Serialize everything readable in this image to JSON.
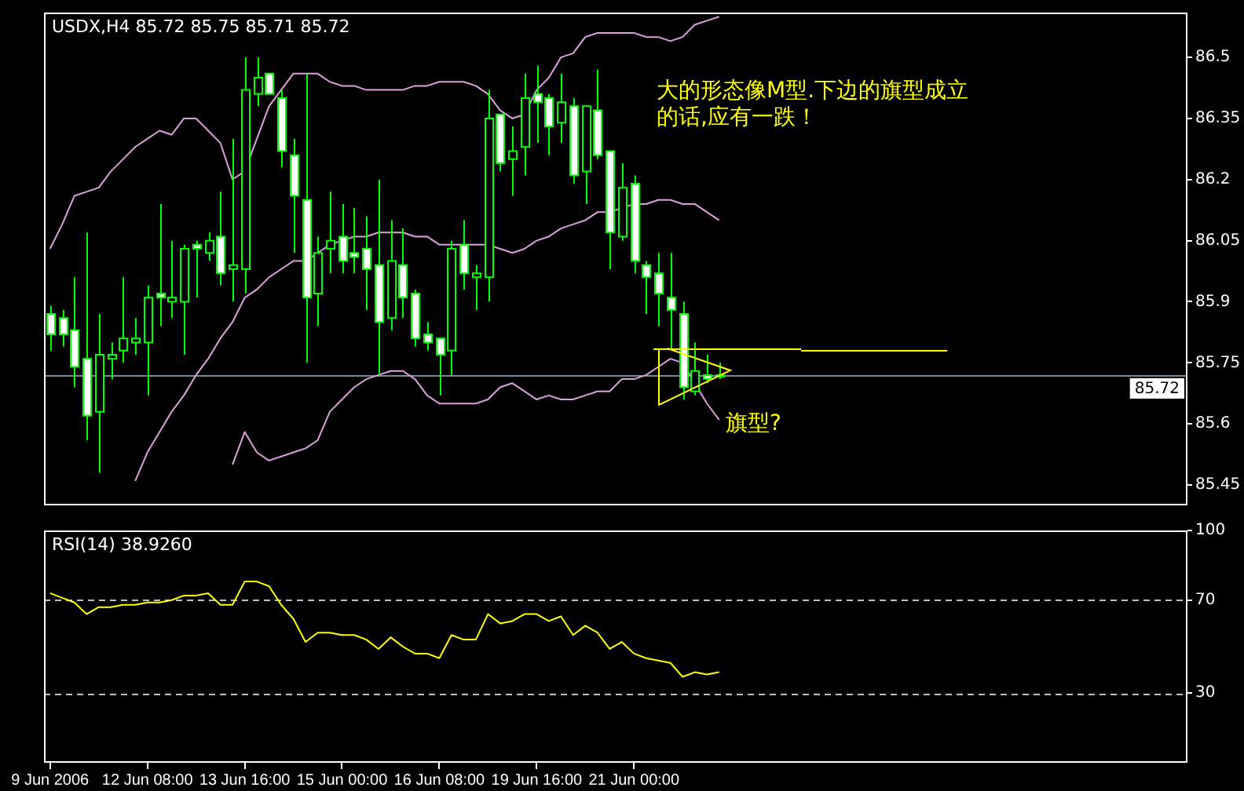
{
  "chart_data": [
    {
      "type": "candlestick",
      "title": "USDX,H4 85.72 85.75 85.71 85.72",
      "categories": [
        null,
        null,
        null,
        null,
        null,
        null,
        null,
        null,
        null,
        null,
        null,
        null,
        null,
        null,
        null,
        null,
        null,
        null,
        null,
        null,
        null,
        null,
        null,
        null,
        null,
        null,
        null,
        null,
        null,
        null,
        null,
        null,
        null,
        null,
        null,
        null,
        null,
        null,
        null,
        null,
        null,
        null,
        null,
        null,
        null,
        null,
        null,
        null,
        null,
        null,
        null,
        null,
        null,
        null,
        null,
        null,
        null,
        null,
        null,
        null,
        null,
        null,
        null,
        null,
        null,
        null,
        null,
        null,
        null,
        null,
        null,
        null,
        null,
        null,
        null,
        null,
        null,
        null,
        null,
        null,
        null,
        null,
        null,
        null,
        null,
        null,
        null,
        null,
        null,
        null,
        null,
        null,
        null,
        null
      ],
      "ohlc": [
        [
          85.87,
          85.89,
          85.78,
          85.82
        ],
        [
          85.86,
          85.88,
          85.79,
          85.82
        ],
        [
          85.83,
          85.96,
          85.69,
          85.74
        ],
        [
          85.76,
          86.07,
          85.56,
          85.62
        ],
        [
          85.63,
          85.87,
          85.48,
          85.77
        ],
        [
          85.76,
          85.8,
          85.71,
          85.77
        ],
        [
          85.78,
          85.96,
          85.75,
          85.81
        ],
        [
          85.8,
          85.86,
          85.77,
          85.81
        ],
        [
          85.8,
          85.94,
          85.67,
          85.91
        ],
        [
          85.92,
          86.14,
          85.84,
          85.91
        ],
        [
          85.9,
          86.05,
          85.86,
          85.91
        ],
        [
          85.9,
          86.04,
          85.77,
          86.03
        ],
        [
          86.04,
          86.05,
          85.91,
          86.03
        ],
        [
          86.02,
          86.07,
          86.0,
          86.05
        ],
        [
          86.06,
          86.17,
          85.94,
          85.97
        ],
        [
          85.98,
          86.3,
          85.9,
          85.99
        ],
        [
          85.98,
          86.5,
          85.92,
          86.42
        ],
        [
          86.41,
          86.5,
          86.38,
          86.45
        ],
        [
          86.46,
          86.46,
          86.41,
          86.41
        ],
        [
          86.4,
          86.42,
          86.23,
          86.27
        ],
        [
          86.26,
          86.3,
          86.02,
          86.16
        ],
        [
          86.15,
          86.46,
          85.75,
          85.91
        ],
        [
          85.92,
          86.06,
          85.84,
          86.02
        ],
        [
          86.03,
          86.17,
          85.97,
          86.05
        ],
        [
          86.06,
          86.14,
          85.97,
          86.0
        ],
        [
          86.02,
          86.13,
          85.97,
          86.01
        ],
        [
          86.03,
          86.11,
          85.88,
          85.98
        ],
        [
          85.99,
          86.2,
          85.72,
          85.85
        ],
        [
          85.86,
          86.1,
          85.83,
          86.0
        ],
        [
          85.99,
          86.08,
          85.86,
          85.91
        ],
        [
          85.92,
          85.93,
          85.79,
          85.81
        ],
        [
          85.82,
          85.85,
          85.78,
          85.8
        ],
        [
          85.81,
          85.81,
          85.67,
          85.77
        ],
        [
          85.78,
          86.05,
          85.72,
          86.03
        ],
        [
          86.04,
          86.1,
          85.93,
          85.97
        ],
        [
          85.96,
          85.99,
          85.88,
          85.97
        ],
        [
          85.96,
          86.42,
          85.9,
          86.35
        ],
        [
          86.36,
          86.36,
          86.22,
          86.24
        ],
        [
          86.25,
          86.33,
          86.16,
          86.27
        ],
        [
          86.28,
          86.46,
          86.21,
          86.4
        ],
        [
          86.41,
          86.48,
          86.29,
          86.39
        ],
        [
          86.4,
          86.41,
          86.26,
          86.33
        ],
        [
          86.34,
          86.46,
          86.29,
          86.39
        ],
        [
          86.38,
          86.4,
          86.19,
          86.21
        ],
        [
          86.22,
          86.38,
          86.14,
          86.38
        ],
        [
          86.37,
          86.47,
          86.25,
          86.26
        ],
        [
          86.27,
          86.27,
          85.98,
          86.07
        ],
        [
          86.06,
          86.24,
          86.05,
          86.18
        ],
        [
          86.19,
          86.21,
          85.97,
          86.0
        ],
        [
          85.99,
          86.0,
          85.87,
          85.96
        ],
        [
          85.97,
          86.02,
          85.84,
          85.92
        ],
        [
          85.91,
          86.02,
          85.78,
          85.88
        ],
        [
          85.87,
          85.9,
          85.66,
          85.69
        ],
        [
          85.68,
          85.8,
          85.67,
          85.73
        ],
        [
          85.72,
          85.77,
          85.7,
          85.71
        ],
        [
          85.72,
          85.75,
          85.71,
          85.72
        ],
        null,
        null,
        null,
        null,
        null,
        null,
        null,
        null,
        null,
        null,
        null,
        null,
        null,
        null,
        null,
        null,
        null,
        null,
        null,
        null,
        null,
        null,
        null,
        null,
        null,
        null,
        null,
        null,
        null,
        null,
        null,
        null,
        null,
        null,
        null,
        null,
        null,
        null
      ],
      "color": "#00ff00",
      "colors": [
        "#ffffff",
        "#ffffff",
        "#ffffff",
        "#ffffff",
        "#000000",
        "#000000",
        "#000000",
        "#000000",
        "#000000",
        "#ffffff",
        "#000000",
        "#000000",
        "#ffffff",
        "#000000",
        "#ffffff",
        "#000000",
        "#000000",
        "#000000",
        "#ffffff",
        "#ffffff",
        "#ffffff",
        "#ffffff",
        "#000000",
        "#000000",
        "#ffffff",
        "#ffffff",
        "#ffffff",
        "#ffffff",
        "#000000",
        "#ffffff",
        "#ffffff",
        "#ffffff",
        "#ffffff",
        "#000000",
        "#ffffff",
        "#000000",
        "#000000",
        "#ffffff",
        "#000000",
        "#000000",
        "#ffffff",
        "#ffffff",
        "#000000",
        "#ffffff",
        "#000000",
        "#ffffff",
        "#ffffff",
        "#000000",
        "#ffffff",
        "#ffffff",
        "#ffffff",
        "#ffffff",
        "#ffffff",
        "#000000",
        "#ffffff",
        "#000000",
        null,
        null,
        null,
        null,
        null,
        null,
        null,
        null,
        null,
        null,
        null,
        null,
        null,
        null,
        null,
        null,
        null,
        null,
        null,
        null,
        null,
        null,
        null,
        null,
        null,
        null,
        null,
        null,
        null,
        null,
        null,
        null,
        null,
        null,
        null,
        null,
        null,
        null
      ],
      "series": [
        {
          "type": "line",
          "color": "#dda0dd",
          "values": [
            86.03,
            86.09,
            86.16,
            86.17,
            86.18,
            86.22,
            86.25,
            86.28,
            86.3,
            86.32,
            86.31,
            86.35,
            86.35,
            86.32,
            86.29,
            86.2,
            86.22,
            86.3,
            86.38,
            86.42,
            86.46,
            86.46,
            86.46,
            86.44,
            86.43,
            86.43,
            86.42,
            86.42,
            86.42,
            86.42,
            86.43,
            86.43,
            86.44,
            86.44,
            86.44,
            86.43,
            86.41,
            86.37,
            86.35,
            86.36,
            86.42,
            86.45,
            86.5,
            86.51,
            86.55,
            86.56,
            86.56,
            86.56,
            86.56,
            86.55,
            86.55,
            86.54,
            86.55,
            86.58,
            86.59,
            86.6,
            null,
            null,
            null,
            null,
            null,
            null,
            null,
            null,
            null,
            null,
            null,
            null,
            null,
            null,
            null,
            null,
            null,
            null,
            null,
            null,
            null,
            null,
            null,
            null,
            null,
            null,
            null,
            null,
            null,
            null,
            null,
            null,
            null,
            null,
            null,
            null,
            null,
            null
          ]
        },
        {
          "type": "line",
          "color": "#dda0dd",
          "values": [
            null,
            null,
            null,
            null,
            null,
            null,
            null,
            85.46,
            85.53,
            85.58,
            85.63,
            85.67,
            85.72,
            85.76,
            85.81,
            85.85,
            85.91,
            85.93,
            85.96,
            85.98,
            86.0,
            86.0,
            86.02,
            86.04,
            86.05,
            86.06,
            86.06,
            86.07,
            86.07,
            86.07,
            86.06,
            86.06,
            86.04,
            86.04,
            86.04,
            86.04,
            86.04,
            86.03,
            86.02,
            86.03,
            86.05,
            86.06,
            86.08,
            86.09,
            86.1,
            86.12,
            86.12,
            86.13,
            86.14,
            86.14,
            86.15,
            86.15,
            86.14,
            86.14,
            86.12,
            86.1,
            null,
            null,
            null,
            null,
            null,
            null,
            null,
            null,
            null,
            null,
            null,
            null,
            null,
            null,
            null,
            null,
            null,
            null,
            null,
            null,
            null,
            null,
            null,
            null,
            null,
            null,
            null,
            null,
            null,
            null,
            null,
            null,
            null,
            null,
            null,
            null,
            null,
            null
          ]
        },
        {
          "type": "line",
          "color": "#dda0dd",
          "values": [
            null,
            null,
            null,
            null,
            null,
            null,
            null,
            null,
            null,
            null,
            null,
            null,
            null,
            null,
            null,
            85.5,
            85.58,
            85.53,
            85.51,
            85.52,
            85.53,
            85.54,
            85.56,
            85.63,
            85.66,
            85.69,
            85.71,
            85.72,
            85.73,
            85.73,
            85.71,
            85.67,
            85.65,
            85.65,
            85.65,
            85.65,
            85.66,
            85.69,
            85.7,
            85.68,
            85.66,
            85.67,
            85.66,
            85.66,
            85.67,
            85.68,
            85.68,
            85.71,
            85.71,
            85.72,
            85.74,
            85.76,
            85.75,
            85.7,
            85.65,
            85.61,
            null,
            null,
            null,
            null,
            null,
            null,
            null,
            null,
            null,
            null,
            null,
            null,
            null,
            null,
            null,
            null,
            null,
            null,
            null,
            null,
            null,
            null,
            null,
            null,
            null,
            null,
            null,
            null,
            null,
            null,
            null,
            null,
            null,
            null,
            null,
            null,
            null,
            null
          ]
        }
      ],
      "ylim": [
        85.4,
        86.61
      ],
      "yticks": [
        85.45,
        85.6,
        85.75,
        85.9,
        86.05,
        86.2,
        86.35,
        86.5
      ],
      "ref_lines": [
        {
          "axis": "y",
          "value": 85.72,
          "label": "85.72",
          "color": "#778899"
        }
      ],
      "annotations": [
        "大的形态像M型.下边的旗型成立的话,应有一跌！",
        "旗型?"
      ],
      "tick_labels": "y",
      "grid": false,
      "legend": false
    },
    {
      "type": "line",
      "title": "RSI(14) 38.9260",
      "categories": [
        "9 Jun 2006",
        null,
        null,
        null,
        null,
        null,
        null,
        null,
        "12 Jun 08:00",
        null,
        null,
        null,
        null,
        null,
        null,
        null,
        "13 Jun 16:00",
        null,
        null,
        null,
        null,
        null,
        null,
        null,
        "15 Jun 00:00",
        null,
        null,
        null,
        null,
        null,
        null,
        null,
        "16 Jun 08:00",
        null,
        null,
        null,
        null,
        null,
        null,
        null,
        "19 Jun 16:00",
        null,
        null,
        null,
        null,
        null,
        null,
        null,
        "21 Jun 00:00",
        null,
        null,
        null,
        null,
        null,
        null,
        null,
        null,
        null,
        null,
        null,
        null,
        null,
        null,
        null,
        null,
        null,
        null,
        null,
        null,
        null,
        null,
        null,
        null,
        null,
        null,
        null,
        null,
        null,
        null,
        null,
        null,
        null,
        null,
        null,
        null,
        null,
        null,
        null,
        null,
        null,
        null,
        null,
        null,
        null
      ],
      "values": [
        73,
        71,
        69,
        64,
        67,
        67,
        68,
        68,
        69,
        69,
        70,
        72,
        72,
        73,
        68,
        68,
        78,
        78,
        76,
        68,
        62,
        52,
        56,
        56,
        55,
        55,
        53,
        49,
        54,
        50,
        47,
        47,
        45,
        55,
        53,
        53,
        64,
        60,
        61,
        64,
        64,
        61,
        63,
        55,
        59,
        56,
        49,
        52,
        47,
        45,
        44,
        43,
        37,
        39,
        38,
        39,
        null,
        null,
        null,
        null,
        null,
        null,
        null,
        null,
        null,
        null,
        null,
        null,
        null,
        null,
        null,
        null,
        null,
        null,
        null,
        null,
        null,
        null,
        null,
        null,
        null,
        null,
        null,
        null,
        null,
        null,
        null,
        null,
        null,
        null,
        null,
        null,
        null,
        null
      ],
      "color": "#ffff00",
      "ylim": [
        0,
        100
      ],
      "yticks": [
        30,
        70,
        100
      ],
      "ref_lines": [
        {
          "axis": "y",
          "value": 70,
          "color": "#c0c0c0",
          "line_style": "dashed"
        },
        {
          "axis": "y",
          "value": 30,
          "color": "#c0c0c0",
          "line_style": "dashed"
        }
      ],
      "grid": false,
      "legend": false
    }
  ]
}
